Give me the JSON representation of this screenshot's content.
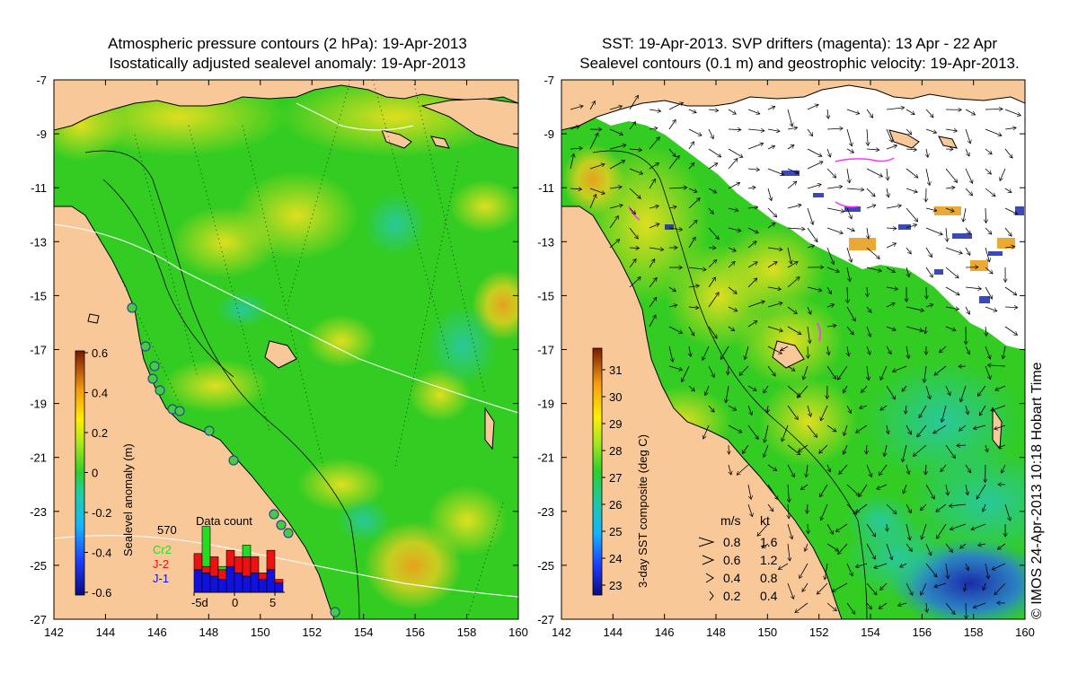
{
  "left_panel": {
    "title_line1": "Atmospheric pressure contours (2 hPa): 19-Apr-2013",
    "title_line2": "Isostatically adjusted sealevel anomaly: 19-Apr-2013",
    "colorbar_label": "Sealevel anomaly (m)",
    "colorbar_ticks": [
      "0.6",
      "0.4",
      "0.2",
      "0",
      "-0.2",
      "-0.4",
      "-0.6"
    ],
    "data_count": {
      "title": "Data count",
      "max_label": "570",
      "legend": [
        {
          "label": "Cr2",
          "color": "#22dd22"
        },
        {
          "label": "J-2",
          "color": "#ee1111"
        },
        {
          "label": "J-1",
          "color": "#1111dd"
        }
      ],
      "xticks": [
        "-5d",
        "0",
        "5"
      ],
      "bars": [
        {
          "j1": 0.35,
          "j2": 0.25,
          "cr2": 0.0
        },
        {
          "j1": 0.3,
          "j2": 0.1,
          "cr2": 0.62
        },
        {
          "j1": 0.25,
          "j2": 0.3,
          "cr2": 0.0
        },
        {
          "j1": 0.2,
          "j2": 0.15,
          "cr2": 0.05
        },
        {
          "j1": 0.4,
          "j2": 0.25,
          "cr2": 0.0
        },
        {
          "j1": 0.3,
          "j2": 0.25,
          "cr2": 0.0
        },
        {
          "j1": 0.25,
          "j2": 0.3,
          "cr2": 0.18
        },
        {
          "j1": 0.3,
          "j2": 0.25,
          "cr2": 0.0
        },
        {
          "j1": 0.2,
          "j2": 0.1,
          "cr2": 0.0
        },
        {
          "j1": 0.35,
          "j2": 0.3,
          "cr2": 0.0
        },
        {
          "j1": 0.15,
          "j2": 0.05,
          "cr2": 0.0
        }
      ]
    }
  },
  "right_panel": {
    "title_line1": "SST: 19-Apr-2013. SVP drifters (magenta): 13 Apr - 22 Apr",
    "title_line2": "Sealevel contours (0.1 m) and geostrophic velocity: 19-Apr-2013.",
    "colorbar_label": "3-day SST composite (deg C)",
    "colorbar_ticks": [
      "31",
      "30",
      "29",
      "28",
      "27",
      "26",
      "25",
      "24",
      "23"
    ],
    "speed_legend": {
      "header_ms": "m/s",
      "header_kt": "kt",
      "rows": [
        {
          "ms": "0.8",
          "kt": "1.6"
        },
        {
          "ms": "0.6",
          "kt": "1.2"
        },
        {
          "ms": "0.4",
          "kt": "0.8"
        },
        {
          "ms": "0.2",
          "kt": "0.4"
        }
      ]
    }
  },
  "axes": {
    "lat_ticks": [
      "-7",
      "-9",
      "-11",
      "-13",
      "-15",
      "-17",
      "-19",
      "-21",
      "-23",
      "-25",
      "-27"
    ],
    "lon_ticks": [
      "142",
      "144",
      "146",
      "148",
      "150",
      "152",
      "154",
      "156",
      "158",
      "160"
    ]
  },
  "stamp": "© IMOS 24-Apr-2013 10:18 Hobart Time",
  "colors": {
    "land": "#f9c898",
    "ocean_green": "#33cc22",
    "coast": "#000000"
  }
}
